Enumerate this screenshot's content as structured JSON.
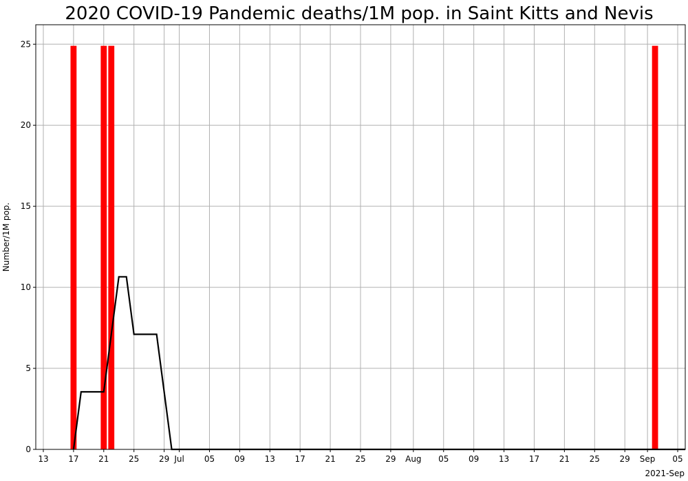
{
  "chart_data": {
    "type": "bar",
    "title": "2020 COVID-19 Pandemic deaths/1M pop. in Saint Kitts and Nevis",
    "xlabel": "",
    "ylabel": "Number/1M pop.",
    "corner_label": "2021-Sep",
    "xlim": [
      "2021-06-12",
      "2021-09-06"
    ],
    "ylim": [
      0,
      26.2
    ],
    "grid": true,
    "x_ticks": [
      {
        "date": "2021-06-13",
        "label": "13"
      },
      {
        "date": "2021-06-17",
        "label": "17"
      },
      {
        "date": "2021-06-21",
        "label": "21"
      },
      {
        "date": "2021-06-25",
        "label": "25"
      },
      {
        "date": "2021-06-29",
        "label": "29"
      },
      {
        "date": "2021-07-01",
        "label": "Jul"
      },
      {
        "date": "2021-07-05",
        "label": "05"
      },
      {
        "date": "2021-07-09",
        "label": "09"
      },
      {
        "date": "2021-07-13",
        "label": "13"
      },
      {
        "date": "2021-07-17",
        "label": "17"
      },
      {
        "date": "2021-07-21",
        "label": "21"
      },
      {
        "date": "2021-07-25",
        "label": "25"
      },
      {
        "date": "2021-07-29",
        "label": "29"
      },
      {
        "date": "2021-08-01",
        "label": "Aug"
      },
      {
        "date": "2021-08-05",
        "label": "05"
      },
      {
        "date": "2021-08-09",
        "label": "09"
      },
      {
        "date": "2021-08-13",
        "label": "13"
      },
      {
        "date": "2021-08-17",
        "label": "17"
      },
      {
        "date": "2021-08-21",
        "label": "21"
      },
      {
        "date": "2021-08-25",
        "label": "25"
      },
      {
        "date": "2021-08-29",
        "label": "29"
      },
      {
        "date": "2021-09-01",
        "label": "Sep"
      },
      {
        "date": "2021-09-05",
        "label": "05"
      }
    ],
    "y_ticks": [
      0,
      5,
      10,
      15,
      20,
      25
    ],
    "bars": {
      "color": "#ff0000",
      "points": [
        {
          "date": "2021-06-17",
          "value": 24.9
        },
        {
          "date": "2021-06-21",
          "value": 24.9
        },
        {
          "date": "2021-06-22",
          "value": 24.9
        },
        {
          "date": "2021-09-02",
          "value": 24.9
        }
      ]
    },
    "line": {
      "color": "#000000",
      "points": [
        {
          "date": "2021-06-17",
          "value": 0
        },
        {
          "date": "2021-06-18",
          "value": 3.55
        },
        {
          "date": "2021-06-21",
          "value": 3.55
        },
        {
          "date": "2021-06-22",
          "value": 7.1
        },
        {
          "date": "2021-06-23",
          "value": 10.65
        },
        {
          "date": "2021-06-24",
          "value": 10.65
        },
        {
          "date": "2021-06-25",
          "value": 7.1
        },
        {
          "date": "2021-06-28",
          "value": 7.1
        },
        {
          "date": "2021-06-30",
          "value": 0
        },
        {
          "date": "2021-09-06",
          "value": 0
        }
      ]
    }
  }
}
